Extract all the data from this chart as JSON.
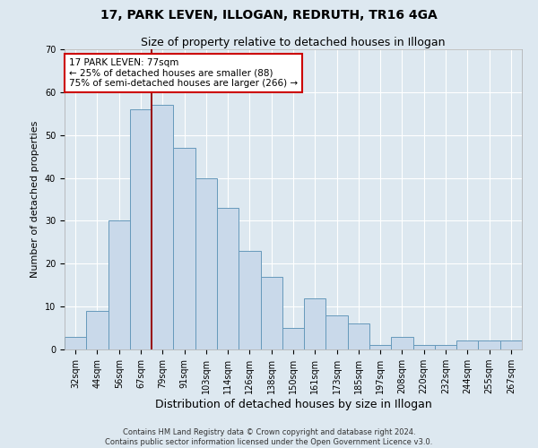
{
  "title": "17, PARK LEVEN, ILLOGAN, REDRUTH, TR16 4GA",
  "subtitle": "Size of property relative to detached houses in Illogan",
  "xlabel": "Distribution of detached houses by size in Illogan",
  "ylabel": "Number of detached properties",
  "categories": [
    "32sqm",
    "44sqm",
    "56sqm",
    "67sqm",
    "79sqm",
    "91sqm",
    "103sqm",
    "114sqm",
    "126sqm",
    "138sqm",
    "150sqm",
    "161sqm",
    "173sqm",
    "185sqm",
    "197sqm",
    "208sqm",
    "220sqm",
    "232sqm",
    "244sqm",
    "255sqm",
    "267sqm"
  ],
  "values": [
    3,
    9,
    30,
    56,
    57,
    47,
    40,
    33,
    23,
    17,
    5,
    12,
    8,
    6,
    1,
    3,
    1,
    1,
    2,
    2,
    2
  ],
  "bar_color": "#c9d9ea",
  "bar_edge_color": "#6699bb",
  "vline_x_idx": 3.5,
  "vline_color": "#990000",
  "annotation_text": "17 PARK LEVEN: 77sqm\n← 25% of detached houses are smaller (88)\n75% of semi-detached houses are larger (266) →",
  "annotation_box_facecolor": "#ffffff",
  "annotation_box_edgecolor": "#cc0000",
  "ylim": [
    0,
    70
  ],
  "yticks": [
    0,
    10,
    20,
    30,
    40,
    50,
    60,
    70
  ],
  "fig_facecolor": "#dde8f0",
  "axes_facecolor": "#dde8f0",
  "grid_color": "#ffffff",
  "title_fontsize": 10,
  "subtitle_fontsize": 9,
  "tick_fontsize": 7,
  "ylabel_fontsize": 8,
  "xlabel_fontsize": 9,
  "annotation_fontsize": 7.5,
  "footer_line1": "Contains HM Land Registry data © Crown copyright and database right 2024.",
  "footer_line2": "Contains public sector information licensed under the Open Government Licence v3.0.",
  "footer_fontsize": 6
}
